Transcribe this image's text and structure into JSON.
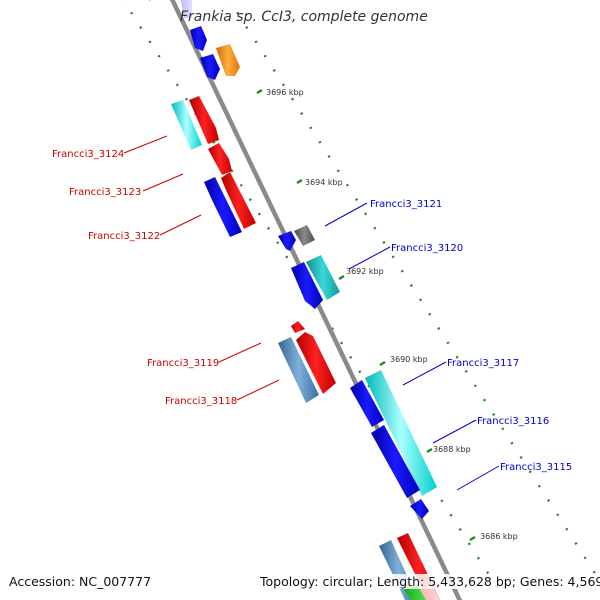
{
  "header": {
    "title": "Frankia sp. CcI3, complete genome"
  },
  "footer": {
    "accession": "Accession: NC_007777",
    "topology": "Topology: circular; Length: 5,433,628 bp; Genes: 4,569"
  },
  "colors": {
    "backbone": "#8a8a8a",
    "dot_track": "#1f8a1f",
    "label_plus_strand": "#0000cc",
    "label_minus_strand": "#cc0000",
    "gene_blue": "#0000e6",
    "gene_red": "#ee0000",
    "gene_cyan": "#00e8e8",
    "gene_teal": "#19c0c0",
    "gene_steel": "#4f86b8",
    "gene_orange": "#ff8c00",
    "gene_gray": "#6b6b6b"
  },
  "kbp_ticks": [
    "3696 kbp",
    "3694 kbp",
    "3692 kbp",
    "3690 kbp",
    "3688 kbp",
    "3686 kbp"
  ],
  "gene_labels": {
    "left": [
      "Francci3_3124",
      "Francci3_3123",
      "Francci3_3122",
      "Francci3_3119",
      "Francci3_3118"
    ],
    "right": [
      "Francci3_3121",
      "Francci3_3120",
      "Francci3_3117",
      "Francci3_3116",
      "Francci3_3115"
    ]
  },
  "genes": [
    {
      "label": "",
      "color": "blue"
    },
    {
      "label": "",
      "color": "blue"
    },
    {
      "label": "",
      "color": "orange"
    },
    {
      "label": "Francci3_3124",
      "color": "cyan"
    },
    {
      "label": "Francci3_3124",
      "color": "red"
    },
    {
      "label": "Francci3_3123",
      "color": "red"
    },
    {
      "label": "Francci3_3122",
      "color": "blue"
    },
    {
      "label": "Francci3_3122",
      "color": "red"
    },
    {
      "label": "Francci3_3121",
      "color": "blue"
    },
    {
      "label": "Francci3_3121",
      "color": "gray"
    },
    {
      "label": "Francci3_3120",
      "color": "blue"
    },
    {
      "label": "Francci3_3120",
      "color": "teal"
    },
    {
      "label": "Francci3_3119",
      "color": "red"
    },
    {
      "label": "Francci3_3118",
      "color": "steel"
    },
    {
      "label": "Francci3_3118",
      "color": "red"
    },
    {
      "label": "Francci3_3117",
      "color": "blue"
    },
    {
      "label": "Francci3_3117",
      "color": "cyan"
    },
    {
      "label": "Francci3_3116",
      "color": "blue"
    },
    {
      "label": "Francci3_3115",
      "color": "blue"
    },
    {
      "label": "",
      "color": "steel"
    },
    {
      "label": "",
      "color": "red"
    }
  ]
}
